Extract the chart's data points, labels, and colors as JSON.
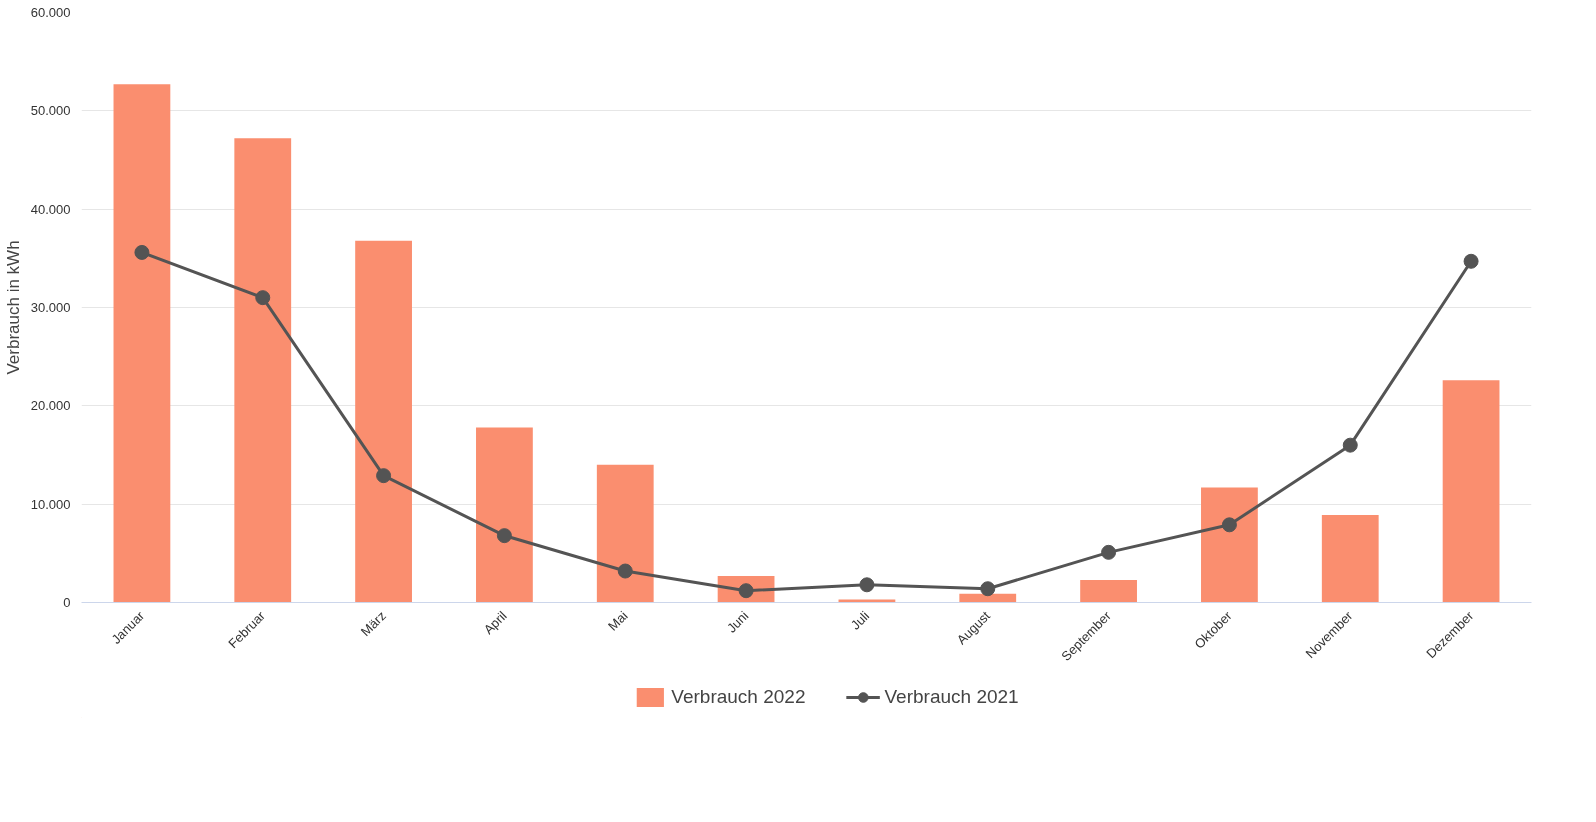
{
  "chart_data": {
    "type": "bar",
    "ylabel": "Verbrauch in kWh",
    "categories": [
      "Januar",
      "Februar",
      "März",
      "April",
      "Mai",
      "Juni",
      "Juli",
      "August",
      "September",
      "Oktober",
      "November",
      "Dezember"
    ],
    "series": [
      {
        "name": "Verbrauch 2022",
        "color": "#fa8e6f",
        "values": [
          52700,
          47200,
          36800,
          17800,
          14000,
          2700,
          300,
          900,
          2300,
          11700,
          8900,
          22600
        ]
      },
      {
        "name": "Verbrauch 2021",
        "type": "line",
        "color": "#545454",
        "marker": "circle",
        "values": [
          35600,
          31000,
          12900,
          6800,
          3200,
          1200,
          1800,
          1400,
          5100,
          7900,
          16000,
          34700
        ]
      }
    ],
    "ylim": [
      0,
      60000
    ],
    "yticks": [
      {
        "value": 0,
        "label": "0"
      },
      {
        "value": 10000,
        "label": "10.000"
      },
      {
        "value": 20000,
        "label": "20.000"
      },
      {
        "value": 30000,
        "label": "30.000"
      },
      {
        "value": 40000,
        "label": "40.000"
      },
      {
        "value": 50000,
        "label": "50.000"
      },
      {
        "value": 60000,
        "label": "60.000"
      }
    ],
    "grid": "y",
    "legend": "bottom"
  }
}
